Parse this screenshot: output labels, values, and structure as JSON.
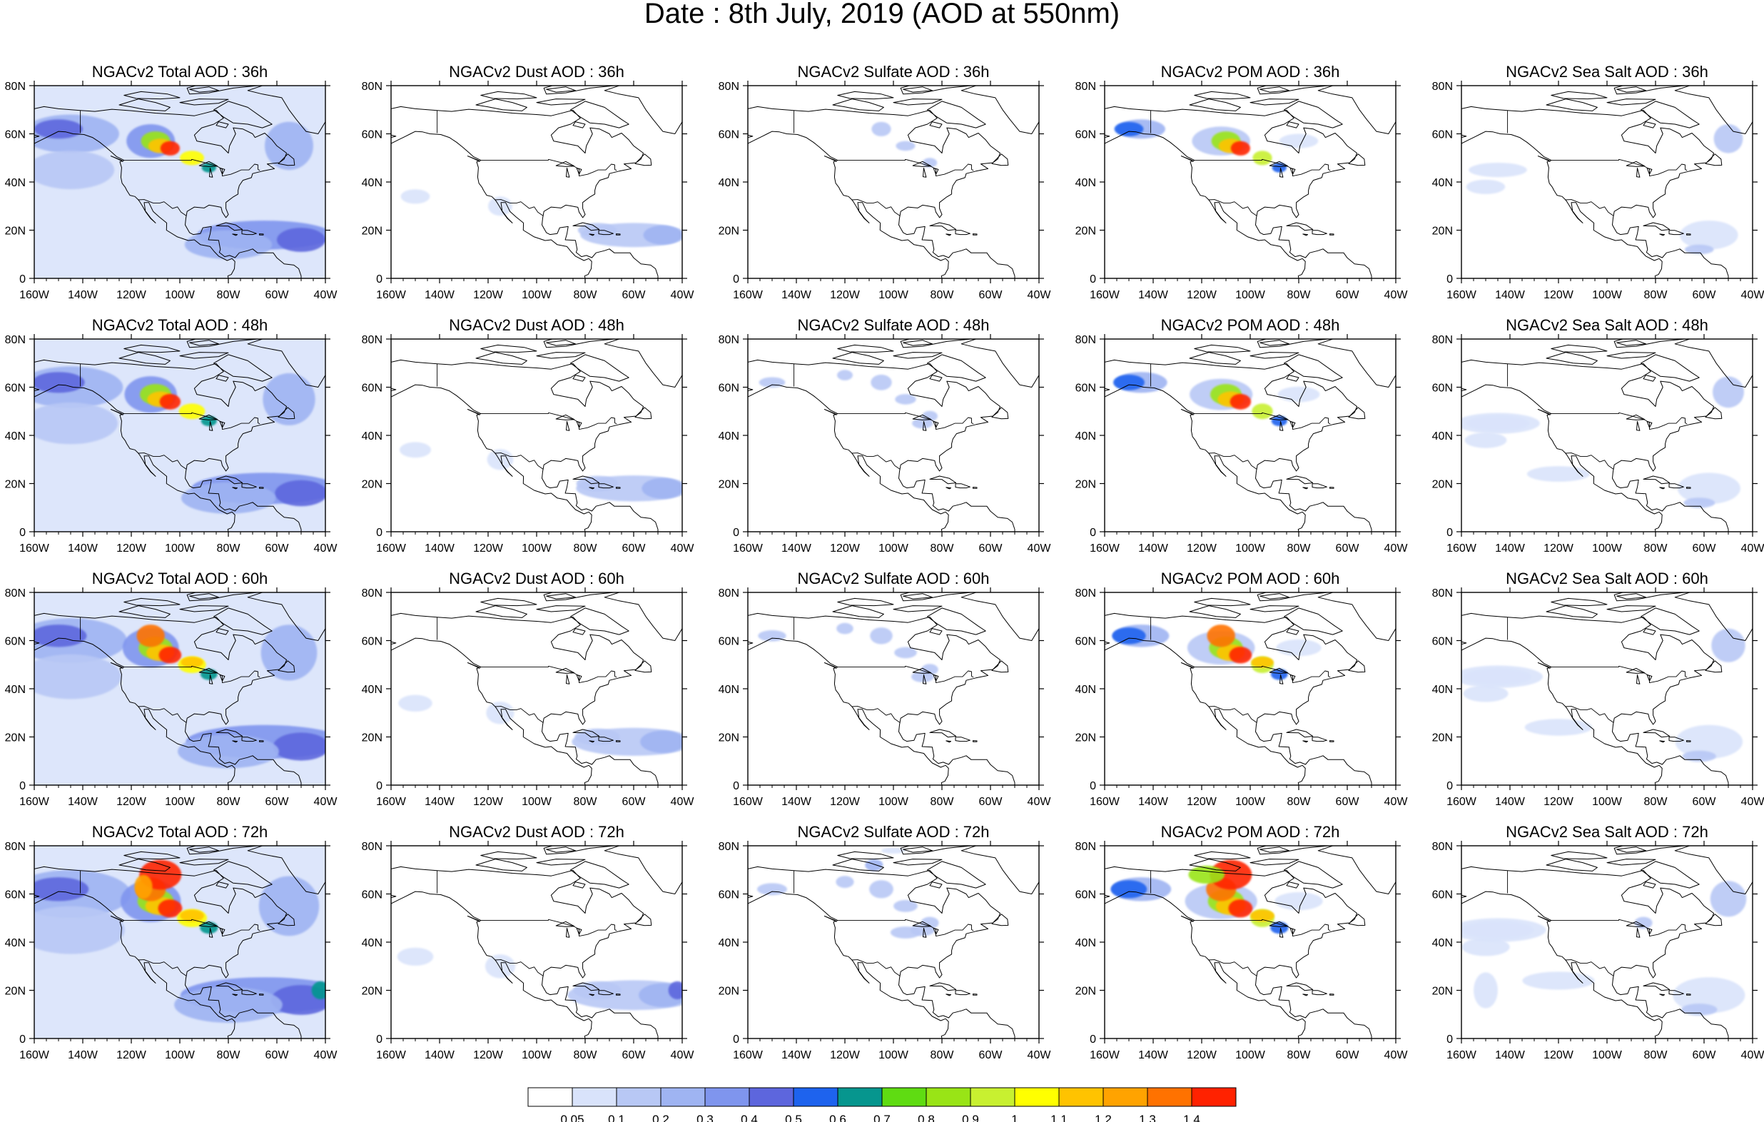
{
  "title": "Date : 8th July, 2019 (AOD at 550nm)",
  "rows": [
    {
      "lead": "36h",
      "panels": [
        {
          "title": "NGACv2 Total AOD : 36h",
          "species": "total"
        },
        {
          "title": "NGACv2 Dust AOD : 36h",
          "species": "dust"
        },
        {
          "title": "NGACv2 Sulfate AOD : 36h",
          "species": "sulfate"
        },
        {
          "title": "NGACv2 POM AOD : 36h",
          "species": "pom"
        },
        {
          "title": "NGACv2 Sea Salt AOD : 36h",
          "species": "seasalt"
        }
      ]
    },
    {
      "lead": "48h",
      "panels": [
        {
          "title": "NGACv2 Total AOD : 48h",
          "species": "total"
        },
        {
          "title": "NGACv2 Dust AOD : 48h",
          "species": "dust"
        },
        {
          "title": "NGACv2 Sulfate AOD : 48h",
          "species": "sulfate"
        },
        {
          "title": "NGACv2 POM AOD : 48h",
          "species": "pom"
        },
        {
          "title": "NGACv2 Sea Salt AOD : 48h",
          "species": "seasalt"
        }
      ]
    },
    {
      "lead": "60h",
      "panels": [
        {
          "title": "NGACv2 Total AOD : 60h",
          "species": "total"
        },
        {
          "title": "NGACv2 Dust AOD : 60h",
          "species": "dust"
        },
        {
          "title": "NGACv2 Sulfate AOD : 60h",
          "species": "sulfate"
        },
        {
          "title": "NGACv2 POM AOD : 60h",
          "species": "pom"
        },
        {
          "title": "NGACv2 Sea Salt AOD : 60h",
          "species": "seasalt"
        }
      ]
    },
    {
      "lead": "72h",
      "panels": [
        {
          "title": "NGACv2 Total AOD : 72h",
          "species": "total"
        },
        {
          "title": "NGACv2 Dust AOD : 72h",
          "species": "dust"
        },
        {
          "title": "NGACv2 Sulfate AOD : 72h",
          "species": "sulfate"
        },
        {
          "title": "NGACv2 POM AOD : 72h",
          "species": "pom"
        },
        {
          "title": "NGACv2 Sea Salt  AOD : 72h",
          "species": "seasalt"
        }
      ]
    }
  ],
  "axes": {
    "lon_ticks": [
      "160W",
      "140W",
      "120W",
      "100W",
      "80W",
      "60W",
      "40W"
    ],
    "lat_ticks": [
      "0",
      "20N",
      "40N",
      "60N",
      "80N"
    ],
    "lon_range": [
      -160,
      -40
    ],
    "lat_range": [
      0,
      80
    ]
  },
  "colorbar": {
    "levels": [
      "0.05",
      "0.1",
      "0.2",
      "0.3",
      "0.4",
      "0.5",
      "0.6",
      "0.7",
      "0.8",
      "0.9",
      "1",
      "1.1",
      "1.2",
      "1.3",
      "1.4"
    ],
    "colors": [
      "#ffffff",
      "#d9e3fb",
      "#b8c8f5",
      "#9fb4f2",
      "#7f95ee",
      "#5d66dd",
      "#1e63ee",
      "#06968e",
      "#5fdc12",
      "#99e416",
      "#c8f030",
      "#ffff00",
      "#ffc300",
      "#ffa300",
      "#ff7200",
      "#ff2200"
    ]
  }
}
